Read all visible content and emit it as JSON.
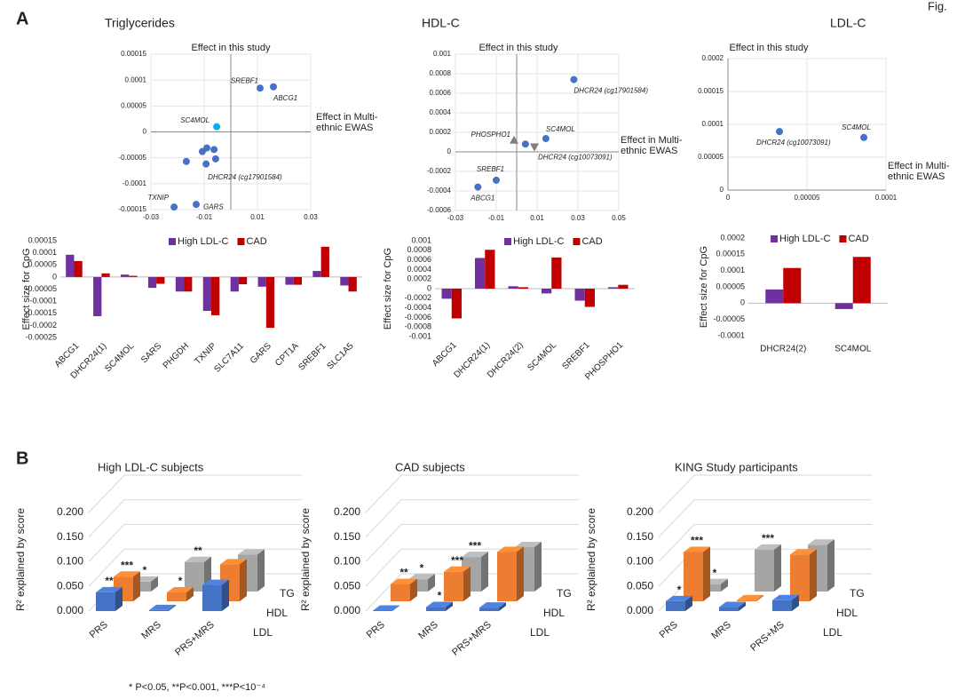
{
  "figure_label": "Fig.",
  "panel_labels": [
    "A",
    "B"
  ],
  "footnote": "* P<0.05, **P<0.001, ***P<10⁻⁴",
  "chart_data": [
    {
      "type": "scatter",
      "title": "Triglycerides",
      "ylabel": "Effect in this study",
      "xlabel": "Effect in Multi-ethnic EWAS",
      "x": [
        0.011,
        0.016,
        -0.0053,
        -0.009,
        -0.0107,
        -0.0063,
        -0.0057,
        -0.0093,
        -0.0167,
        -0.0213,
        -0.013
      ],
      "values": [
        8.45e-05,
        8.7e-05,
        1e-05,
        -3.1e-05,
        -3.8e-05,
        -3.4e-05,
        -5.2e-05,
        -6.2e-05,
        -5.7e-05,
        -0.000145,
        -0.00014
      ],
      "labels": [
        "SREBF1",
        "ABCG1",
        "SC4MOL",
        null,
        null,
        null,
        null,
        "DHCR24 (cg17901584)",
        null,
        "TXNIP",
        "GARS"
      ],
      "markers": [
        "circle",
        "circle",
        "circle",
        "circle",
        "circle",
        "circle",
        "circle",
        "circle",
        "circle",
        "circle",
        "circle"
      ],
      "colors": [
        "#4472c4",
        "#4472c4",
        "#00b0f0",
        "#4472c4",
        "#4472c4",
        "#4472c4",
        "#4472c4",
        "#4472c4",
        "#4472c4",
        "#4472c4",
        "#4472c4"
      ],
      "xlim": [
        -0.03,
        0.03
      ],
      "xticks": [
        -0.03,
        -0.01,
        0.01,
        0.03
      ],
      "ylim": [
        -0.00015,
        0.00015
      ],
      "yticks": [
        -0.00015,
        -0.0001,
        -5e-05,
        0,
        5e-05,
        0.0001,
        0.00015
      ],
      "grid": true
    },
    {
      "type": "scatter",
      "title": "HDL-C",
      "ylabel": "Effect in this study",
      "xlabel": "Effect in Multi-ethnic EWAS",
      "x": [
        0.028,
        0.0143,
        0.0043,
        -0.0013,
        0.0087,
        -0.01,
        -0.019
      ],
      "values": [
        0.00074,
        0.000136,
        8e-05,
        0.00012,
        5e-05,
        -0.00029,
        -0.00036
      ],
      "labels": [
        "DHCR24 (cg17901584)",
        "SC4MOL",
        null,
        "PHOSPHO1",
        "DHCR24 (cg10073091)",
        "SREBF1",
        "ABCG1"
      ],
      "markers": [
        "circle",
        "circle",
        "circle",
        "triangle-up",
        "triangle-down",
        "circle",
        "circle"
      ],
      "colors": [
        "#4472c4",
        "#4472c4",
        "#4472c4",
        "#7f7f7f",
        "#7f7f7f",
        "#4472c4",
        "#4472c4"
      ],
      "xlim": [
        -0.03,
        0.05
      ],
      "xticks": [
        -0.03,
        -0.01,
        0.01,
        0.03,
        0.05
      ],
      "ylim": [
        -0.0006,
        0.001
      ],
      "yticks": [
        -0.0006,
        -0.0004,
        -0.0002,
        0,
        0.0002,
        0.0004,
        0.0006,
        0.0008,
        0.001
      ],
      "grid": true
    },
    {
      "type": "scatter",
      "title": "LDL-C",
      "ylabel": "Effect in this study",
      "xlabel": "Effect in Multi-ethnic EWAS",
      "x": [
        3.26e-05,
        8.6e-05
      ],
      "values": [
        8.9e-05,
        8e-05
      ],
      "labels": [
        "DHCR24 (cg10073091)",
        "SC4MOL"
      ],
      "markers": [
        "circle",
        "circle"
      ],
      "colors": [
        "#4472c4",
        "#4472c4"
      ],
      "xlim": [
        0,
        0.0001
      ],
      "xticks": [
        0,
        5e-05,
        0.0001
      ],
      "ylim": [
        0,
        0.0002
      ],
      "yticks": [
        0,
        5e-05,
        0.0001,
        0.00015,
        0.0002
      ],
      "grid": true
    },
    {
      "type": "bar",
      "ylabel": "Effect size for CpG",
      "categories": [
        "ABCG1",
        "DHCR24(1)",
        "SC4MOL",
        "SARS",
        "PHGDH",
        "TXNIP",
        "SLC7A11",
        "GARS",
        "CPT1A",
        "SREBF1",
        "SLC1A5"
      ],
      "series": [
        {
          "name": "High LDL-C",
          "color": "#7030a0",
          "values": [
            9.2e-05,
            -0.000162,
            1e-05,
            -4.5e-05,
            -6e-05,
            -0.00014,
            -6e-05,
            -4e-05,
            -3.2e-05,
            2.5e-05,
            -3.5e-05
          ]
        },
        {
          "name": "CAD",
          "color": "#c00000",
          "values": [
            6.6e-05,
            1.5e-05,
            5e-06,
            -2.8e-05,
            -6e-05,
            -0.000158,
            -3e-05,
            -0.00021,
            -3.2e-05,
            0.000125,
            -6e-05
          ]
        }
      ],
      "ylim": [
        -0.00025,
        0.00015
      ],
      "yticks": [
        -0.00025,
        -0.0002,
        -0.00015,
        -0.0001,
        -5e-05,
        0,
        5e-05,
        0.0001,
        0.00015
      ],
      "grid": false
    },
    {
      "type": "bar",
      "ylabel": "Effect size for CpG",
      "categories": [
        "ABCG1",
        "DHCR24(1)",
        "DHCR24(2)",
        "SC4MOL",
        "SREBF1",
        "PHOSPHO1"
      ],
      "series": [
        {
          "name": "High LDL-C",
          "color": "#7030a0",
          "values": [
            -0.00021,
            0.00064,
            5e-05,
            -0.0001,
            -0.00025,
            3e-05
          ]
        },
        {
          "name": "CAD",
          "color": "#c00000",
          "values": [
            -0.00062,
            0.00081,
            3e-05,
            0.00065,
            -0.00038,
            8e-05
          ]
        }
      ],
      "ylim": [
        -0.001,
        0.001
      ],
      "yticks": [
        -0.001,
        -0.0008,
        -0.0006,
        -0.0004,
        -0.0002,
        0,
        0.0002,
        0.0004,
        0.0006,
        0.0008,
        0.001
      ],
      "grid": false
    },
    {
      "type": "bar",
      "ylabel": "Effect size for CpG",
      "categories": [
        "DHCR24(2)",
        "SC4MOL"
      ],
      "series": [
        {
          "name": "High LDL-C",
          "color": "#7030a0",
          "values": [
            4.2e-05,
            -1.8e-05
          ]
        },
        {
          "name": "CAD",
          "color": "#c00000",
          "values": [
            0.000108,
            0.000142
          ]
        }
      ],
      "ylim": [
        -0.0001,
        0.0002
      ],
      "yticks": [
        -0.0001,
        -5e-05,
        0,
        5e-05,
        0.0001,
        0.00015,
        0.0002
      ],
      "grid": false
    },
    {
      "type": "bar3d",
      "title": "High LDL-C subjects",
      "ylabel": "R² explained by score",
      "categories": [
        "PRS",
        "MRS",
        "PRS+MRS"
      ],
      "series": [
        {
          "name": "LDL",
          "color": "#4472c4",
          "values": [
            0.038,
            0.002,
            0.053
          ],
          "significance": [
            "**",
            null,
            null
          ]
        },
        {
          "name": "HDL",
          "color": "#ed7d31",
          "values": [
            0.05,
            0.018,
            0.075
          ],
          "significance": [
            "***",
            "*",
            null
          ]
        },
        {
          "name": "TG",
          "color": "#a5a5a5",
          "values": [
            0.02,
            0.06,
            0.075
          ],
          "significance": [
            "*",
            "**",
            null
          ]
        }
      ],
      "ylim": [
        0,
        0.2
      ],
      "yticks": [
        {
          "value": 0,
          "label": "0.000"
        },
        {
          "value": 0.05,
          "label": "0.050"
        },
        {
          "value": 0.1,
          "label": "0.100"
        },
        {
          "value": 0.15,
          "label": "0.150"
        },
        {
          "value": 0.2,
          "label": "0.200"
        }
      ],
      "grid": true
    },
    {
      "type": "bar3d",
      "title": "CAD subjects",
      "ylabel": "R² explained by score",
      "categories": [
        "PRS",
        "MRS",
        "PRS+MRS"
      ],
      "series": [
        {
          "name": "LDL",
          "color": "#4472c4",
          "values": [
            0.001,
            0.008,
            0.007
          ],
          "significance": [
            null,
            "*",
            null
          ]
        },
        {
          "name": "HDL",
          "color": "#ed7d31",
          "values": [
            0.035,
            0.06,
            0.1
          ],
          "significance": [
            "**",
            "***",
            null
          ]
        },
        {
          "name": "TG",
          "color": "#a5a5a5",
          "values": [
            0.025,
            0.07,
            0.09
          ],
          "significance": [
            "*",
            "***",
            null
          ]
        }
      ],
      "ylim": [
        0,
        0.2
      ],
      "yticks": [
        {
          "value": 0,
          "label": "0.000"
        },
        {
          "value": 0.05,
          "label": "0.050"
        },
        {
          "value": 0.1,
          "label": "0.100"
        },
        {
          "value": 0.15,
          "label": "0.150"
        },
        {
          "value": 0.2,
          "label": "0.200"
        }
      ],
      "grid": true
    },
    {
      "type": "bar3d",
      "title": "KING Study participants",
      "ylabel": "R² explained by score",
      "categories": [
        "PRS",
        "MRS",
        "PRS+MS"
      ],
      "series": [
        {
          "name": "LDL",
          "color": "#4472c4",
          "values": [
            0.02,
            0.008,
            0.022
          ],
          "significance": [
            "*",
            null,
            null
          ]
        },
        {
          "name": "HDL",
          "color": "#ed7d31",
          "values": [
            0.1,
            0.002,
            0.095
          ],
          "significance": [
            "***",
            null,
            null
          ]
        },
        {
          "name": "TG",
          "color": "#a5a5a5",
          "values": [
            0.015,
            0.085,
            0.095
          ],
          "significance": [
            "*",
            "***",
            null
          ]
        }
      ],
      "ylim": [
        0,
        0.2
      ],
      "yticks": [
        {
          "value": 0,
          "label": "0.000"
        },
        {
          "value": 0.05,
          "label": "0.050"
        },
        {
          "value": 0.1,
          "label": "0.100"
        },
        {
          "value": 0.15,
          "label": "0.150"
        },
        {
          "value": 0.2,
          "label": "0.200"
        }
      ],
      "grid": true
    }
  ]
}
